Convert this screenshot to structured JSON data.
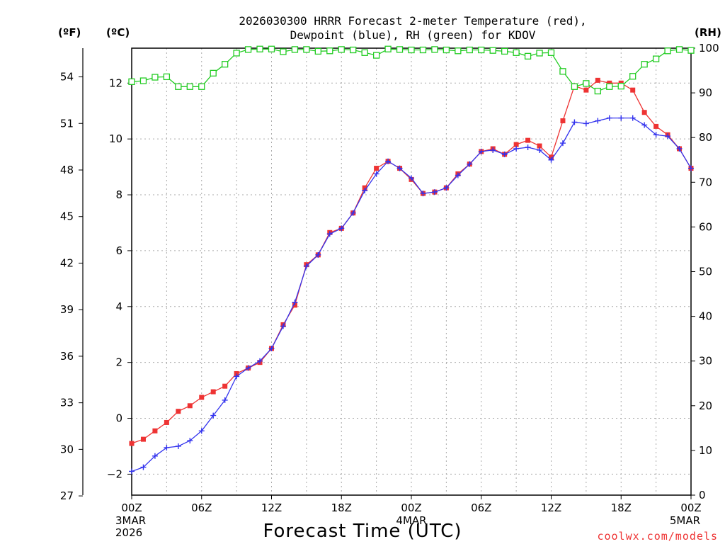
{
  "chart_data": {
    "type": "line",
    "title_lines": [
      "2026030300 HRRR Forecast 2-meter Temperature (red),",
      "Dewpoint (blue), RH (green) for KDOV"
    ],
    "xlabel": "Forecast Time (UTC)",
    "credit": "coolwx.com/models",
    "units": {
      "fahrenheit": "(ºF)",
      "celsius": "(ºC)",
      "rh": "(RH)"
    },
    "x_ticks": [
      {
        "hour": 0,
        "label": "00Z",
        "sub": [
          "3MAR",
          "2026"
        ]
      },
      {
        "hour": 6,
        "label": "06Z",
        "sub": []
      },
      {
        "hour": 12,
        "label": "12Z",
        "sub": []
      },
      {
        "hour": 18,
        "label": "18Z",
        "sub": []
      },
      {
        "hour": 24,
        "label": "00Z",
        "sub": [
          "4MAR"
        ]
      },
      {
        "hour": 30,
        "label": "06Z",
        "sub": []
      },
      {
        "hour": 36,
        "label": "12Z",
        "sub": []
      },
      {
        "hour": 42,
        "label": "18Z",
        "sub": []
      },
      {
        "hour": 48,
        "label": "00Z",
        "sub": [
          "5MAR"
        ]
      }
    ],
    "x_range": [
      0,
      48
    ],
    "y_celsius": {
      "range": [
        -2.75,
        13.25
      ],
      "ticks": [
        -2,
        0,
        2,
        4,
        6,
        8,
        10,
        12
      ]
    },
    "y_fahrenheit": {
      "ticks": [
        27,
        30,
        33,
        36,
        39,
        42,
        45,
        48,
        51,
        54
      ]
    },
    "y_rh": {
      "range": [
        0,
        100
      ],
      "ticks": [
        0,
        10,
        20,
        30,
        40,
        50,
        60,
        70,
        80,
        90,
        100
      ]
    },
    "hours": [
      0,
      1,
      2,
      3,
      4,
      5,
      6,
      7,
      8,
      9,
      10,
      11,
      12,
      13,
      14,
      15,
      16,
      17,
      18,
      19,
      20,
      21,
      22,
      23,
      24,
      25,
      26,
      27,
      28,
      29,
      30,
      31,
      32,
      33,
      34,
      35,
      36,
      37,
      38,
      39,
      40,
      41,
      42,
      43,
      44,
      45,
      46,
      47,
      48
    ],
    "series": [
      {
        "name": "Temperature",
        "unit": "C",
        "color": "#ee3333",
        "marker": "square",
        "values": [
          -0.9,
          -0.75,
          -0.45,
          -0.15,
          0.25,
          0.45,
          0.75,
          0.95,
          1.15,
          1.6,
          1.8,
          2.0,
          2.5,
          3.35,
          4.05,
          5.5,
          5.85,
          6.65,
          6.8,
          7.35,
          8.25,
          8.95,
          9.2,
          8.95,
          8.55,
          8.05,
          8.1,
          8.25,
          8.75,
          9.1,
          9.55,
          9.65,
          9.45,
          9.8,
          9.95,
          9.75,
          9.35,
          10.65,
          11.9,
          11.75,
          12.1,
          12.0,
          12.0,
          11.75,
          10.95,
          10.45,
          10.15,
          9.65,
          8.95
        ]
      },
      {
        "name": "Dewpoint",
        "unit": "C",
        "color": "#3333ee",
        "marker": "plus",
        "values": [
          -1.9,
          -1.75,
          -1.35,
          -1.05,
          -1.0,
          -0.8,
          -0.45,
          0.1,
          0.65,
          1.5,
          1.8,
          2.05,
          2.5,
          3.3,
          4.15,
          5.45,
          5.85,
          6.6,
          6.8,
          7.35,
          8.15,
          8.75,
          9.2,
          8.95,
          8.6,
          8.05,
          8.1,
          8.25,
          8.7,
          9.1,
          9.55,
          9.6,
          9.45,
          9.65,
          9.7,
          9.6,
          9.25,
          9.85,
          10.6,
          10.55,
          10.65,
          10.75,
          10.75,
          10.75,
          10.5,
          10.15,
          10.1,
          9.65,
          8.95
        ]
      },
      {
        "name": "RH",
        "unit": "%",
        "color": "#22cc22",
        "marker": "open-square",
        "values": [
          92.5,
          92.7,
          93.5,
          93.6,
          91.4,
          91.4,
          91.4,
          94.4,
          96.4,
          98.9,
          99.7,
          99.8,
          99.8,
          99.2,
          99.7,
          99.7,
          99.3,
          99.4,
          99.7,
          99.6,
          99.0,
          98.4,
          99.8,
          99.7,
          99.6,
          99.6,
          99.7,
          99.6,
          99.4,
          99.6,
          99.6,
          99.5,
          99.3,
          99.0,
          98.2,
          98.9,
          99.0,
          94.8,
          91.4,
          92.1,
          90.4,
          91.4,
          91.5,
          93.7,
          96.4,
          97.6,
          99.4,
          99.7,
          99.5
        ]
      }
    ]
  }
}
